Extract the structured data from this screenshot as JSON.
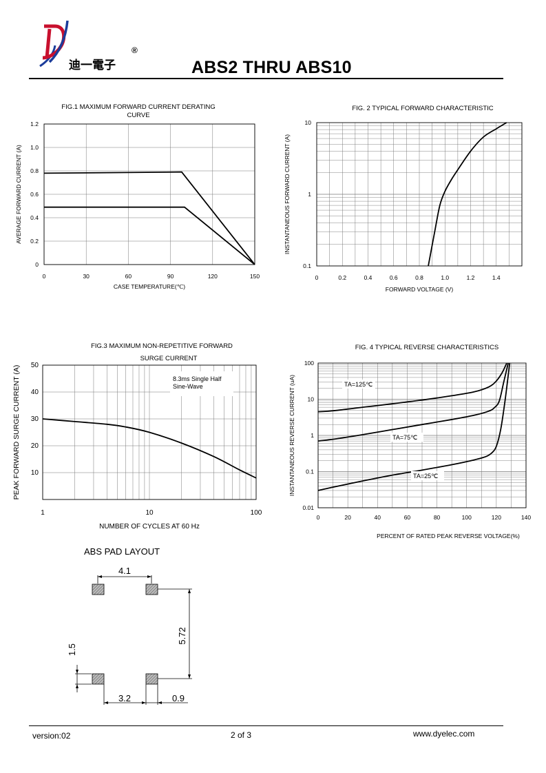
{
  "header": {
    "brand_cn": "迪一電子",
    "registered": "®",
    "title": "ABS2 THRU ABS10"
  },
  "chart_data": [
    {
      "id": "fig1",
      "type": "line",
      "title": "FIG.1 MAXIMUM FORWARD CURRENT DERATING CURVE",
      "title_lines": [
        "FIG.1 MAXIMUM FORWARD CURRENT DERATING",
        "CURVE"
      ],
      "xlabel": "CASE TEMPERATURE(℃)",
      "ylabel": "AVERAGE FORWARD CURRENT (A)",
      "xlim": [
        0,
        150
      ],
      "ylim": [
        0,
        1.2
      ],
      "xticks": [
        "0",
        "30",
        "60",
        "90",
        "120",
        "150"
      ],
      "yticks": [
        "0",
        "0.2",
        "0.4",
        "0.6",
        "0.8",
        "1.0",
        "1.2"
      ],
      "grid": true,
      "series": [
        {
          "x": [
            0,
            98,
            150
          ],
          "y": [
            0.78,
            0.79,
            0
          ]
        },
        {
          "x": [
            0,
            100,
            150
          ],
          "y": [
            0.49,
            0.49,
            0
          ]
        }
      ]
    },
    {
      "id": "fig2",
      "type": "line",
      "title": "FIG. 2 TYPICAL FORWARD CHARACTERISTIC",
      "xlabel": "FORWARD VOLTAGE (V)",
      "ylabel": "INSTANTANEOUS FORWARD CURRENT (A)",
      "xlim": [
        0,
        1.6
      ],
      "ylim": [
        0.1,
        10
      ],
      "yscale": "log",
      "xticks": [
        "0",
        "0.2",
        "0.4",
        "0.6",
        "0.8",
        "1.0",
        "1.2",
        "1.4"
      ],
      "yticks": [
        "0.1",
        "1",
        "10"
      ],
      "grid": true,
      "series": [
        {
          "x": [
            0.87,
            0.92,
            0.96,
            1.0,
            1.05,
            1.1,
            1.2,
            1.3,
            1.4,
            1.48
          ],
          "y": [
            0.1,
            0.3,
            0.7,
            1.1,
            1.6,
            2.2,
            4.0,
            6.3,
            8.2,
            10
          ]
        }
      ]
    },
    {
      "id": "fig3",
      "type": "line",
      "title": "FIG.3 MAXIMUM NON-REPETITIVE FORWARD SURGE CURRENT",
      "title_lines": [
        "FIG.3 MAXIMUM NON-REPETITIVE FORWARD",
        "SURGE CURRENT"
      ],
      "xlabel": "NUMBER OF CYCLES AT 60 Hz",
      "ylabel": "PEAK FORWARD SURGE CURRENT (A)",
      "xlim": [
        1,
        100
      ],
      "xscale": "log",
      "ylim": [
        0,
        50
      ],
      "xticks": [
        "1",
        "10",
        "100"
      ],
      "yticks": [
        "10",
        "20",
        "30",
        "40",
        "50"
      ],
      "annotation_lines": [
        "8.3ms Single Half",
        "Sine-Wave"
      ],
      "grid": true,
      "series": [
        {
          "x": [
            1,
            2,
            4,
            6,
            10,
            20,
            40,
            70,
            100
          ],
          "y": [
            30,
            29,
            28,
            27,
            25,
            21,
            16,
            11,
            8
          ]
        }
      ]
    },
    {
      "id": "fig4",
      "type": "line",
      "title": "FIG. 4 TYPICAL REVERSE CHARACTERISTICS",
      "xlabel": "PERCENT OF RATED PEAK REVERSE VOLTAGE(%)",
      "ylabel": "INSTANTANEOUS REVERSE CURRENT (uA)",
      "xlim": [
        0,
        140
      ],
      "ylim": [
        0.01,
        100
      ],
      "yscale": "log",
      "xticks": [
        "0",
        "20",
        "40",
        "60",
        "80",
        "100",
        "120",
        "140"
      ],
      "yticks": [
        "0.01",
        "0.1",
        "1",
        "10",
        "100"
      ],
      "grid": true,
      "series": [
        {
          "name": "TA=125℃",
          "x": [
            0,
            10,
            30,
            50,
            70,
            90,
            105,
            115,
            120,
            124,
            127
          ],
          "y": [
            4.5,
            4.8,
            6,
            7.5,
            9.5,
            12.5,
            16,
            22,
            32,
            55,
            100
          ]
        },
        {
          "name": "TA=75℃",
          "x": [
            0,
            10,
            30,
            50,
            70,
            90,
            105,
            115,
            119,
            122,
            125,
            128
          ],
          "y": [
            0.7,
            0.78,
            1.05,
            1.45,
            2,
            2.75,
            3.6,
            4.7,
            6,
            9,
            30,
            100
          ]
        },
        {
          "name": "TA=25℃",
          "x": [
            0,
            10,
            30,
            50,
            70,
            90,
            105,
            113,
            117,
            120,
            123,
            126,
            129
          ],
          "y": [
            0.03,
            0.037,
            0.055,
            0.08,
            0.11,
            0.155,
            0.21,
            0.26,
            0.33,
            0.5,
            1.5,
            10,
            100
          ]
        }
      ],
      "labels": {
        "t125": "TA=125℃",
        "t75": "TA=75℃",
        "t25": "TA=25℃"
      }
    }
  ],
  "pad_layout": {
    "title": "ABS PAD LAYOUT",
    "dim_top": "4.1",
    "dim_right": "5.72",
    "dim_left": "1.5",
    "dim_bottom_mid": "3.2",
    "dim_bottom_right": "0.9"
  },
  "footer": {
    "version": "version:02",
    "page": "2 of 3",
    "website": "www.dyelec.com"
  }
}
